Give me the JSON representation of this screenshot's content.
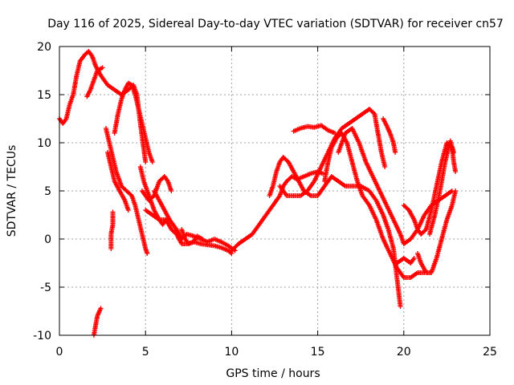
{
  "chart_data": {
    "type": "scatter",
    "title": "Day 116 of 2025, Sidereal Day-to-day VTEC variation (SDTVAR) for receiver cn57",
    "xlabel": "GPS time / hours",
    "ylabel": "SDTVAR / TECUs",
    "xlim": [
      0,
      25
    ],
    "ylim": [
      -10,
      20
    ],
    "xticks": [
      "0",
      "5",
      "10",
      "15",
      "20",
      "25"
    ],
    "yticks": [
      "-10",
      "-5",
      "0",
      "5",
      "10",
      "15",
      "20"
    ],
    "grid": true,
    "marker": "+",
    "color": "#ff0000",
    "series": [
      {
        "name": "s1",
        "points": [
          [
            0,
            12.5
          ],
          [
            0.2,
            12.0
          ],
          [
            0.4,
            12.5
          ],
          [
            0.6,
            14.0
          ],
          [
            0.8,
            15.0
          ],
          [
            1.0,
            17.0
          ],
          [
            1.2,
            18.5
          ],
          [
            1.5,
            19.2
          ],
          [
            1.7,
            19.5
          ],
          [
            1.9,
            19.0
          ],
          [
            2.1,
            18.0
          ],
          [
            2.4,
            17.0
          ],
          [
            2.8,
            16.0
          ],
          [
            3.2,
            15.5
          ],
          [
            3.6,
            15.0
          ],
          [
            4.0,
            15.5
          ],
          [
            4.3,
            16.0
          ],
          [
            4.5,
            15.0
          ],
          [
            4.7,
            12.0
          ],
          [
            5.0,
            8.0
          ]
        ]
      },
      {
        "name": "s2",
        "points": [
          [
            1.6,
            14.8
          ],
          [
            1.8,
            15.5
          ],
          [
            2.0,
            16.5
          ],
          [
            2.2,
            17.5
          ],
          [
            2.5,
            17.8
          ]
        ]
      },
      {
        "name": "s3",
        "points": [
          [
            2.7,
            11.5
          ],
          [
            2.9,
            10.0
          ],
          [
            3.1,
            8.5
          ],
          [
            3.3,
            7.0
          ],
          [
            3.6,
            5.5
          ],
          [
            3.9,
            5.0
          ],
          [
            4.2,
            4.5
          ],
          [
            4.4,
            3.5
          ],
          [
            4.6,
            2.0
          ],
          [
            4.8,
            0.5
          ],
          [
            5.0,
            -1.0
          ],
          [
            5.1,
            -1.5
          ]
        ]
      },
      {
        "name": "s4",
        "points": [
          [
            3.0,
            -1.0
          ],
          [
            3.0,
            0.5
          ],
          [
            3.1,
            1.5
          ],
          [
            3.1,
            2.8
          ]
        ]
      },
      {
        "name": "s5",
        "points": [
          [
            2.0,
            -10.0
          ],
          [
            2.1,
            -9.0
          ],
          [
            2.2,
            -8.0
          ],
          [
            2.4,
            -7.2
          ]
        ]
      },
      {
        "name": "s6",
        "points": [
          [
            3.2,
            11.0
          ],
          [
            3.4,
            13.0
          ],
          [
            3.6,
            14.5
          ],
          [
            3.8,
            15.5
          ],
          [
            4.0,
            16.2
          ],
          [
            4.2,
            16.0
          ],
          [
            4.4,
            15.0
          ],
          [
            4.6,
            13.5
          ],
          [
            4.8,
            12.0
          ],
          [
            5.0,
            10.5
          ],
          [
            5.2,
            9.0
          ],
          [
            5.4,
            8.0
          ]
        ]
      },
      {
        "name": "s7",
        "points": [
          [
            2.8,
            9.0
          ],
          [
            3.0,
            7.5
          ],
          [
            3.2,
            6.0
          ],
          [
            3.5,
            5.0
          ],
          [
            3.8,
            4.0
          ],
          [
            4.0,
            3.0
          ]
        ]
      },
      {
        "name": "s8",
        "points": [
          [
            4.7,
            7.5
          ],
          [
            4.9,
            6.0
          ],
          [
            5.2,
            4.5
          ],
          [
            5.5,
            3.0
          ],
          [
            5.8,
            2.0
          ],
          [
            6.0,
            1.5
          ],
          [
            6.2,
            2.0
          ]
        ]
      },
      {
        "name": "s9",
        "points": [
          [
            4.8,
            5.0
          ],
          [
            5.2,
            4.0
          ],
          [
            5.5,
            4.5
          ],
          [
            5.8,
            6.0
          ],
          [
            6.1,
            6.5
          ],
          [
            6.3,
            6.0
          ],
          [
            6.5,
            5.0
          ]
        ]
      },
      {
        "name": "s10",
        "points": [
          [
            5.0,
            3.0
          ],
          [
            5.4,
            2.5
          ],
          [
            5.8,
            2.0
          ],
          [
            6.2,
            2.0
          ],
          [
            6.5,
            1.0
          ],
          [
            6.8,
            0.5
          ],
          [
            7.1,
            -0.5
          ],
          [
            7.4,
            -0.5
          ],
          [
            7.8,
            -0.3
          ],
          [
            8.2,
            -0.5
          ],
          [
            8.6,
            -0.6
          ],
          [
            9.0,
            -0.7
          ],
          [
            9.4,
            -0.9
          ],
          [
            9.8,
            -1.2
          ],
          [
            10.0,
            -1.5
          ]
        ]
      },
      {
        "name": "s11",
        "points": [
          [
            5.5,
            5.0
          ],
          [
            5.8,
            4.0
          ],
          [
            6.1,
            3.0
          ],
          [
            6.4,
            2.0
          ],
          [
            6.8,
            1.0
          ],
          [
            7.1,
            0.0
          ],
          [
            7.4,
            0.5
          ],
          [
            7.8,
            0.3
          ],
          [
            8.2,
            0.0
          ],
          [
            8.6,
            -0.3
          ],
          [
            9.0,
            0.0
          ],
          [
            9.4,
            -0.3
          ],
          [
            9.8,
            -0.7
          ],
          [
            10.2,
            -1.2
          ]
        ]
      },
      {
        "name": "s12",
        "points": [
          [
            7.1,
            1.0
          ],
          [
            7.3,
            0.0
          ],
          [
            7.5,
            -0.5
          ],
          [
            7.8,
            -0.3
          ],
          [
            8.0,
            0.3
          ],
          [
            8.3,
            0.0
          ]
        ]
      },
      {
        "name": "s13",
        "points": [
          [
            10.0,
            -1.2
          ],
          [
            10.4,
            -0.5
          ],
          [
            10.8,
            0.0
          ],
          [
            11.2,
            0.5
          ],
          [
            11.6,
            1.5
          ],
          [
            12.0,
            2.5
          ],
          [
            12.4,
            3.5
          ],
          [
            12.8,
            4.5
          ],
          [
            13.0,
            5.5
          ],
          [
            13.2,
            6.0
          ],
          [
            13.5,
            6.5
          ],
          [
            13.8,
            6.2
          ],
          [
            14.2,
            6.5
          ],
          [
            14.6,
            6.8
          ],
          [
            15.0,
            7.0
          ],
          [
            15.3,
            6.8
          ]
        ]
      },
      {
        "name": "s14",
        "points": [
          [
            12.2,
            4.5
          ],
          [
            12.4,
            5.5
          ],
          [
            12.6,
            7.0
          ],
          [
            12.8,
            8.0
          ],
          [
            13.0,
            8.5
          ],
          [
            13.3,
            8.0
          ],
          [
            13.6,
            7.0
          ],
          [
            13.9,
            6.0
          ],
          [
            14.2,
            5.0
          ],
          [
            14.6,
            4.5
          ],
          [
            15.0,
            4.5
          ],
          [
            15.4,
            5.5
          ],
          [
            15.8,
            6.5
          ],
          [
            16.2,
            6.0
          ],
          [
            16.6,
            5.5
          ],
          [
            17.0,
            5.5
          ],
          [
            17.5,
            5.5
          ],
          [
            18.0,
            5.0
          ],
          [
            18.4,
            4.0
          ],
          [
            18.8,
            2.5
          ],
          [
            19.1,
            1.0
          ],
          [
            19.4,
            -1.0
          ],
          [
            19.6,
            -4.0
          ],
          [
            19.8,
            -7.0
          ]
        ]
      },
      {
        "name": "s15",
        "points": [
          [
            12.8,
            5.5
          ],
          [
            13.2,
            4.5
          ],
          [
            13.6,
            4.5
          ],
          [
            14.0,
            4.5
          ],
          [
            14.4,
            5.0
          ],
          [
            14.8,
            6.0
          ],
          [
            15.2,
            7.5
          ],
          [
            15.6,
            9.0
          ],
          [
            16.0,
            10.5
          ],
          [
            16.4,
            11.5
          ],
          [
            16.8,
            12.0
          ],
          [
            17.2,
            12.5
          ],
          [
            17.6,
            13.0
          ],
          [
            18.0,
            13.5
          ],
          [
            18.3,
            13.0
          ],
          [
            18.5,
            11.0
          ],
          [
            18.7,
            9.0
          ],
          [
            18.9,
            7.5
          ]
        ]
      },
      {
        "name": "s16",
        "points": [
          [
            13.6,
            11.2
          ],
          [
            14.0,
            11.5
          ],
          [
            14.4,
            11.7
          ],
          [
            14.8,
            11.6
          ],
          [
            15.2,
            11.8
          ],
          [
            15.6,
            11.3
          ],
          [
            16.0,
            11.0
          ]
        ]
      },
      {
        "name": "s17",
        "points": [
          [
            15.4,
            6.0
          ],
          [
            15.6,
            8.0
          ],
          [
            15.8,
            9.5
          ],
          [
            16.1,
            10.5
          ],
          [
            16.4,
            11.0
          ],
          [
            16.7,
            10.0
          ],
          [
            17.0,
            8.0
          ],
          [
            17.3,
            6.0
          ],
          [
            17.6,
            4.5
          ],
          [
            18.0,
            3.5
          ],
          [
            18.4,
            2.0
          ],
          [
            18.8,
            0.0
          ],
          [
            19.2,
            -1.5
          ],
          [
            19.6,
            -3.0
          ],
          [
            20.0,
            -4.0
          ],
          [
            20.4,
            -4.0
          ],
          [
            20.8,
            -3.5
          ],
          [
            21.2,
            -3.5
          ]
        ]
      },
      {
        "name": "s18",
        "points": [
          [
            16.2,
            9.0
          ],
          [
            16.6,
            11.0
          ],
          [
            17.0,
            11.5
          ],
          [
            17.4,
            10.0
          ],
          [
            17.8,
            8.0
          ],
          [
            18.2,
            6.5
          ],
          [
            18.6,
            5.0
          ],
          [
            19.0,
            3.5
          ],
          [
            19.4,
            2.0
          ],
          [
            19.8,
            0.5
          ],
          [
            20.0,
            -0.5
          ],
          [
            20.4,
            0.0
          ],
          [
            20.8,
            1.0
          ],
          [
            21.2,
            2.5
          ],
          [
            21.6,
            3.5
          ],
          [
            22.0,
            4.0
          ],
          [
            22.4,
            4.5
          ],
          [
            22.8,
            5.0
          ]
        ]
      },
      {
        "name": "s19",
        "points": [
          [
            18.8,
            12.5
          ],
          [
            19.0,
            11.8
          ],
          [
            19.2,
            11.0
          ],
          [
            19.4,
            10.0
          ],
          [
            19.5,
            9.0
          ]
        ]
      },
      {
        "name": "s20",
        "points": [
          [
            20.0,
            3.5
          ],
          [
            20.3,
            3.0
          ],
          [
            20.6,
            2.0
          ],
          [
            20.8,
            1.0
          ],
          [
            21.0,
            0.5
          ],
          [
            21.3,
            1.0
          ],
          [
            21.6,
            3.0
          ],
          [
            21.9,
            5.5
          ],
          [
            22.2,
            8.0
          ],
          [
            22.5,
            10.0
          ],
          [
            22.8,
            9.5
          ],
          [
            22.9,
            8.0
          ],
          [
            23.0,
            7.0
          ]
        ]
      },
      {
        "name": "s21",
        "points": [
          [
            19.6,
            -2.5
          ],
          [
            20.0,
            -2.0
          ],
          [
            20.4,
            -2.5
          ],
          [
            20.6,
            -2.0
          ]
        ]
      },
      {
        "name": "s22",
        "points": [
          [
            20.8,
            -1.5
          ],
          [
            21.0,
            -2.5
          ],
          [
            21.3,
            -3.5
          ],
          [
            21.6,
            -3.5
          ],
          [
            21.9,
            -2.0
          ],
          [
            22.2,
            0.0
          ],
          [
            22.5,
            2.0
          ],
          [
            22.8,
            3.5
          ],
          [
            23.0,
            5.0
          ]
        ]
      },
      {
        "name": "s23",
        "points": [
          [
            21.5,
            0.5
          ],
          [
            21.8,
            2.5
          ],
          [
            22.1,
            5.0
          ],
          [
            22.4,
            8.0
          ],
          [
            22.7,
            10.2
          ],
          [
            22.9,
            9.0
          ]
        ]
      }
    ]
  }
}
